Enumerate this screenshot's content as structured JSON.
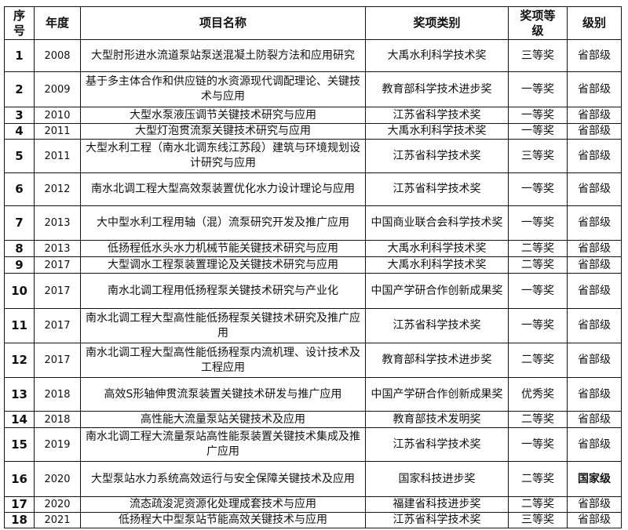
{
  "table": {
    "headers": [
      "序号",
      "年度",
      "项目名称",
      "奖项类别",
      "奖项等级",
      "级别"
    ],
    "rows": [
      [
        "1",
        "2008",
        "大型肘形进水流道泵站泵送混凝土防裂方法和应用研究",
        "大禹水利科学技术奖",
        "三等奖",
        "省部级"
      ],
      [
        "2",
        "2009",
        "基于多主体合作和供应链的水资源现代调配理论、关键技术与应用",
        "教育部科学技术进步奖",
        "一等奖",
        "省部级"
      ],
      [
        "3",
        "2010",
        "大型水泵液压调节关键技术研究与应用",
        "江苏省科学技术奖",
        "一等奖",
        "省部级"
      ],
      [
        "4",
        "2011",
        "大型灯泡贯流泵关键技术研究与应用",
        "大禹水利科学技术奖",
        "一等奖",
        "省部级"
      ],
      [
        "5",
        "2011",
        "大型水利工程（南水北调东线江苏段）建筑与环境规划设计研究与应用",
        "江苏省科学技术奖",
        "三等奖",
        "省部级"
      ],
      [
        "6",
        "2012",
        "南水北调工程大型高效泵装置优化水力设计理论与应用",
        "江苏省科学技术奖",
        "一等奖",
        "省部级"
      ],
      [
        "7",
        "2013",
        "大中型水利工程用轴（混）流泵研究开发及推广应用",
        "中国商业联合会科学技术奖",
        "一等奖",
        "省部级"
      ],
      [
        "8",
        "2013",
        "低扬程低水头水力机械节能关键技术研究与应用",
        "大禹水利科学技术奖",
        "二等奖",
        "省部级"
      ],
      [
        "9",
        "2017",
        "大型调水工程泵装置理论及关键技术研究与应用",
        "大禹水利科学技术奖",
        "二等奖",
        "省部级"
      ],
      [
        "10",
        "2017",
        "南水北调工程用低扬程泵关键技术研究与产业化",
        "中国产学研合作创新成果奖",
        "一等奖",
        "省部级"
      ],
      [
        "11",
        "2017",
        "南水北调工程大型高性能低扬程泵关键技术研究及推广应用",
        "江苏省科学技术奖",
        "一等奖",
        "省部级"
      ],
      [
        "12",
        "2017",
        "南水北调工程大型高性能低扬程泵内流机理、设计技术及工程应用",
        "教育部科学技术进步奖",
        "二等奖",
        "省部级"
      ],
      [
        "13",
        "2018",
        "高效S形轴伸贯流泵装置关键技术研发与推广应用",
        "中国产学研合作创新成果奖",
        "优秀奖",
        "省部级"
      ],
      [
        "14",
        "2018",
        "高性能大流量泵站关键技术及应用",
        "教育部技术发明奖",
        "二等奖",
        "省部级"
      ],
      [
        "15",
        "2019",
        "南水北调工程大流量泵站高性能泵装置关键技术集成及推广应用",
        "江苏省科学技术奖",
        "一等奖",
        "省部级"
      ],
      [
        "16",
        "2020",
        "大型泵站水力系统高效运行与安全保障关键技术及应用",
        "国家科技进步奖",
        "二等奖",
        "国家级"
      ],
      [
        "17",
        "2020",
        "流态疏浚泥资源化处理成套技术与应用",
        "福建省科技进步奖",
        "二等奖",
        "省部级"
      ],
      [
        "18",
        "2021",
        "低扬程大中型泵站节能高效关键技术与应用",
        "江苏省科学技术奖",
        "三等奖",
        "省部级"
      ]
    ]
  }
}
